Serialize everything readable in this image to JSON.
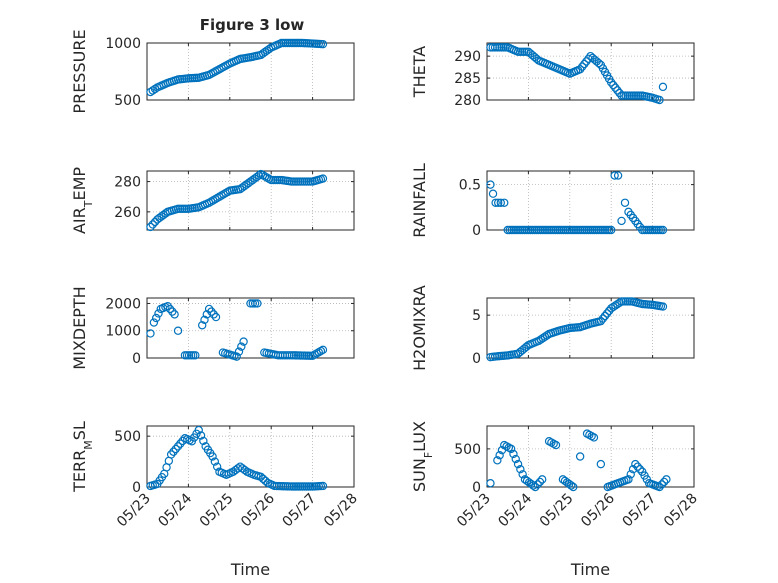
{
  "figure": {
    "title": "Figure 3 low",
    "marker_color": "#0072BD",
    "axes_color": "#262626",
    "grid_color": "#b4b4b4"
  },
  "chart_data": [
    {
      "type": "scatter",
      "ylabel": "PRESSURE",
      "title": "Figure 3 low",
      "xlim": [
        "05/23",
        "05/28"
      ],
      "ylim": [
        500,
        1000
      ],
      "yticks": [
        500,
        1000
      ],
      "xticks": [
        "05/23",
        "05/24",
        "05/25",
        "05/26",
        "05/27",
        "05/28"
      ],
      "show_xticklabels": false,
      "grid": true,
      "series": [
        {
          "x": [
            "05/23 02:00",
            "05/23 06:00",
            "05/23 12:00",
            "05/23 18:00",
            "05/24 00:00",
            "05/24 06:00",
            "05/24 12:00",
            "05/24 18:00",
            "05/25 00:00",
            "05/25 06:00",
            "05/25 12:00",
            "05/25 18:00",
            "05/26 00:00",
            "05/26 06:00",
            "05/26 12:00",
            "05/26 18:00",
            "05/27 00:00",
            "05/27 06:00"
          ],
          "y": [
            570,
            610,
            650,
            680,
            690,
            695,
            720,
            770,
            820,
            860,
            875,
            895,
            960,
            1000,
            1000,
            1000,
            995,
            990
          ]
        }
      ]
    },
    {
      "type": "scatter",
      "ylabel": "THETA",
      "xlim": [
        "05/23",
        "05/28"
      ],
      "ylim": [
        280,
        293
      ],
      "yticks": [
        280,
        285,
        290
      ],
      "xticks": [
        "05/23",
        "05/24",
        "05/25",
        "05/26",
        "05/27",
        "05/28"
      ],
      "show_xticklabels": false,
      "grid": true,
      "series": [
        {
          "x": [
            "05/23 02:00",
            "05/23 06:00",
            "05/23 12:00",
            "05/23 18:00",
            "05/24 00:00",
            "05/24 06:00",
            "05/24 12:00",
            "05/24 18:00",
            "05/25 00:00",
            "05/25 06:00",
            "05/25 12:00",
            "05/25 18:00",
            "05/26 00:00",
            "05/26 06:00",
            "05/26 12:00",
            "05/26 18:00",
            "05/27 00:00",
            "05/27 04:00",
            "05/27 06:00"
          ],
          "y": [
            292,
            292,
            292,
            291,
            291,
            289,
            288,
            287,
            286,
            287,
            290,
            288,
            284,
            281,
            281,
            281,
            280.5,
            280,
            283
          ]
        }
      ]
    },
    {
      "type": "scatter",
      "ylabel": "AIR_TEMP",
      "xlim": [
        "05/23",
        "05/28"
      ],
      "ylim": [
        248,
        287
      ],
      "yticks": [
        260,
        280
      ],
      "xticks": [
        "05/23",
        "05/24",
        "05/25",
        "05/26",
        "05/27",
        "05/28"
      ],
      "show_xticklabels": false,
      "grid": true,
      "series": [
        {
          "x": [
            "05/23 02:00",
            "05/23 06:00",
            "05/23 12:00",
            "05/23 18:00",
            "05/24 00:00",
            "05/24 06:00",
            "05/24 12:00",
            "05/24 18:00",
            "05/25 00:00",
            "05/25 06:00",
            "05/25 12:00",
            "05/25 18:00",
            "05/26 00:00",
            "05/26 06:00",
            "05/26 12:00",
            "05/26 18:00",
            "05/27 00:00",
            "05/27 06:00"
          ],
          "y": [
            250,
            255,
            260,
            262,
            262,
            263,
            266,
            270,
            274,
            275,
            280,
            285,
            281,
            281,
            280,
            280,
            280,
            282
          ]
        }
      ]
    },
    {
      "type": "scatter",
      "ylabel": "RAINFALL",
      "xlim": [
        "05/23",
        "05/28"
      ],
      "ylim": [
        0,
        0.65
      ],
      "yticks": [
        0,
        0.5
      ],
      "xticks": [
        "05/23",
        "05/24",
        "05/25",
        "05/26",
        "05/27",
        "05/28"
      ],
      "show_xticklabels": false,
      "grid": true,
      "series": [
        {
          "x": [
            "05/23 02:00",
            "05/23 05:00",
            "05/23 08:00",
            "05/23 10:00",
            "05/23 12:00",
            "05/23 18:00",
            "05/24 00:00",
            "05/24 12:00",
            "05/25 00:00",
            "05/25 12:00",
            "05/26 00:00",
            "05/26 02:00",
            "05/26 04:00",
            "05/26 06:00",
            "05/26 08:00",
            "05/26 10:00",
            "05/26 18:00",
            "05/27 00:00",
            "05/27 06:00"
          ],
          "y": [
            0.5,
            0.3,
            0.3,
            0.3,
            0,
            0,
            0,
            0,
            0,
            0,
            0,
            0.6,
            0.6,
            0.1,
            0.3,
            0.2,
            0,
            0,
            0
          ]
        }
      ]
    },
    {
      "type": "scatter",
      "ylabel": "MIXDEPTH",
      "xlim": [
        "05/23",
        "05/28"
      ],
      "ylim": [
        0,
        2200
      ],
      "yticks": [
        0,
        1000,
        2000
      ],
      "xticks": [
        "05/23",
        "05/24",
        "05/25",
        "05/26",
        "05/27",
        "05/28"
      ],
      "show_xticklabels": false,
      "grid": true,
      "series": [
        {
          "x": [
            "05/23 02:00",
            "05/23 04:00",
            "05/23 08:00",
            "05/23 12:00",
            "05/23 16:00",
            "05/23 18:00",
            "05/23 22:00",
            "05/24 04:00",
            "05/24 08:00",
            "05/24 12:00",
            "05/24 16:00",
            "05/24 20:00",
            "05/25 04:00",
            "05/25 08:00",
            "05/25 12:00",
            "05/25 16:00",
            "05/25 20:00",
            "05/26 04:00",
            "05/26 12:00",
            "05/27 00:00",
            "05/27 06:00"
          ],
          "y": [
            900,
            1300,
            1800,
            1900,
            1600,
            1000,
            100,
            100,
            1200,
            1800,
            1500,
            200,
            50,
            600,
            2000,
            2000,
            200,
            100,
            100,
            80,
            300
          ]
        }
      ]
    },
    {
      "type": "scatter",
      "ylabel": "H2OMIXRA",
      "xlim": [
        "05/23",
        "05/28"
      ],
      "ylim": [
        0,
        7
      ],
      "yticks": [
        0,
        5
      ],
      "xticks": [
        "05/23",
        "05/24",
        "05/25",
        "05/26",
        "05/27",
        "05/28"
      ],
      "show_xticklabels": false,
      "grid": true,
      "series": [
        {
          "x": [
            "05/23 02:00",
            "05/23 06:00",
            "05/23 12:00",
            "05/23 18:00",
            "05/24 00:00",
            "05/24 06:00",
            "05/24 12:00",
            "05/24 18:00",
            "05/25 00:00",
            "05/25 06:00",
            "05/25 12:00",
            "05/25 18:00",
            "05/26 00:00",
            "05/26 06:00",
            "05/26 12:00",
            "05/26 18:00",
            "05/27 00:00",
            "05/27 06:00"
          ],
          "y": [
            0.1,
            0.2,
            0.3,
            0.5,
            1.5,
            2.0,
            2.8,
            3.2,
            3.5,
            3.6,
            4.0,
            4.3,
            5.8,
            6.6,
            6.6,
            6.3,
            6.2,
            6.0
          ]
        }
      ]
    },
    {
      "type": "scatter",
      "ylabel": "TERR_MSL",
      "xlim": [
        "05/23",
        "05/28"
      ],
      "ylim": [
        0,
        600
      ],
      "yticks": [
        0,
        500
      ],
      "xticks": [
        "05/23",
        "05/24",
        "05/25",
        "05/26",
        "05/27",
        "05/28"
      ],
      "xtick_labels": [
        "05/23",
        "05/24",
        "05/25",
        "05/26",
        "05/27",
        "05/28"
      ],
      "show_xticklabels": true,
      "xlabel": "Time",
      "grid": true,
      "series": [
        {
          "x": [
            "05/23 02:00",
            "05/23 06:00",
            "05/23 10:00",
            "05/23 14:00",
            "05/23 18:00",
            "05/23 22:00",
            "05/24 02:00",
            "05/24 06:00",
            "05/24 10:00",
            "05/24 14:00",
            "05/24 18:00",
            "05/24 22:00",
            "05/25 02:00",
            "05/25 06:00",
            "05/25 10:00",
            "05/25 14:00",
            "05/25 18:00",
            "05/25 22:00",
            "05/26 02:00",
            "05/26 12:00",
            "05/27 00:00",
            "05/27 06:00"
          ],
          "y": [
            10,
            30,
            130,
            320,
            400,
            480,
            450,
            560,
            400,
            300,
            150,
            120,
            150,
            200,
            150,
            120,
            100,
            40,
            10,
            5,
            5,
            10
          ]
        }
      ]
    },
    {
      "type": "scatter",
      "ylabel": "SUN_FLUX",
      "xlim": [
        "05/23",
        "05/28"
      ],
      "ylim": [
        0,
        800
      ],
      "yticks": [
        0,
        500
      ],
      "xticks": [
        "05/23",
        "05/24",
        "05/25",
        "05/26",
        "05/27",
        "05/28"
      ],
      "xtick_labels": [
        "05/23",
        "05/24",
        "05/25",
        "05/26",
        "05/27",
        "05/28"
      ],
      "show_xticklabels": true,
      "xlabel": "Time",
      "grid": true,
      "series": [
        {
          "x": [
            "05/23 02:00",
            "05/23 06:00",
            "05/23 10:00",
            "05/23 14:00",
            "05/23 18:00",
            "05/23 22:00",
            "05/24 04:00",
            "05/24 08:00",
            "05/24 12:00",
            "05/24 16:00",
            "05/24 20:00",
            "05/25 02:00",
            "05/25 06:00",
            "05/25 10:00",
            "05/25 14:00",
            "05/25 18:00",
            "05/25 22:00",
            "05/26 04:00",
            "05/26 10:00",
            "05/26 14:00",
            "05/26 18:00",
            "05/26 22:00",
            "05/27 04:00",
            "05/27 08:00"
          ],
          "y": [
            50,
            350,
            550,
            500,
            300,
            100,
            0,
            100,
            600,
            550,
            100,
            0,
            400,
            700,
            650,
            300,
            0,
            50,
            100,
            300,
            200,
            50,
            0,
            100
          ]
        }
      ]
    }
  ]
}
